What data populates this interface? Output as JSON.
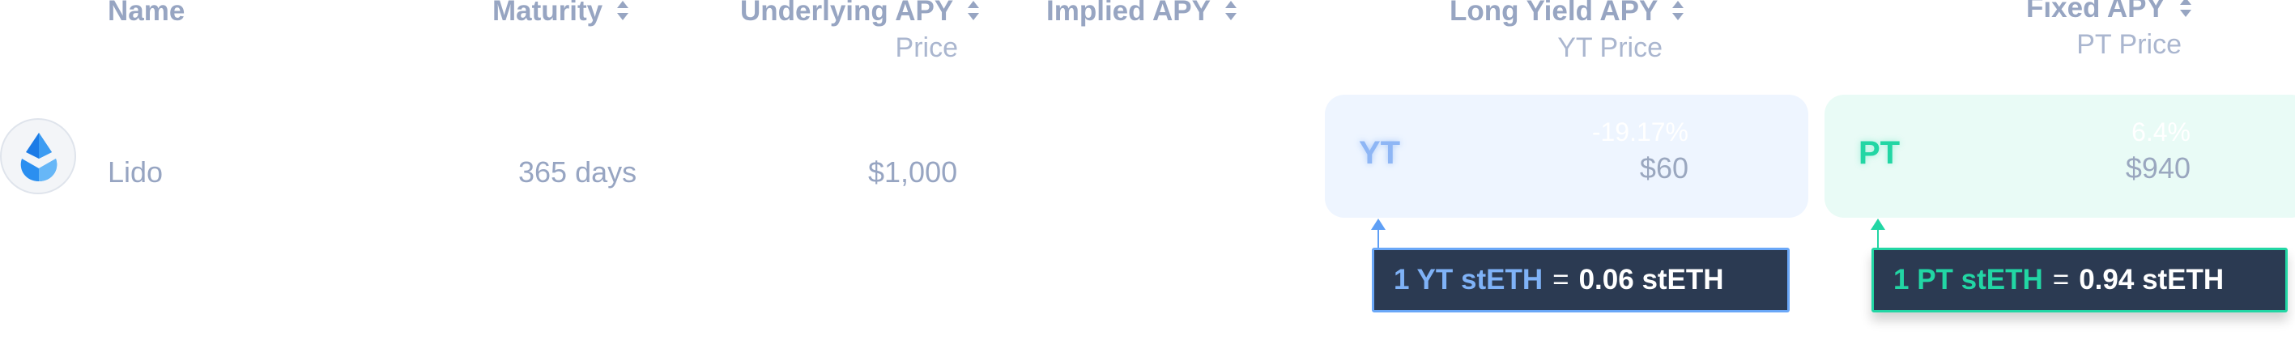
{
  "headers": {
    "name": "Name",
    "maturity": "Maturity",
    "underlying_apy": "Underlying APY",
    "underlying_sub": "Price",
    "implied_apy": "Implied APY",
    "long_yield_apy": "Long Yield APY",
    "long_yield_sub": "YT Price",
    "fixed_apy": "Fixed APY",
    "fixed_sub": "PT Price"
  },
  "row": {
    "name": "Lido",
    "maturity": "365 days",
    "underlying_price": "$1,000",
    "yt": {
      "tag": "YT",
      "apy": "-19.17%",
      "price": "$60"
    },
    "pt": {
      "tag": "PT",
      "apy": "6.4%",
      "price": "$940"
    }
  },
  "tooltips": {
    "yt": {
      "lhs": "1 YT stETH",
      "eq": "=",
      "rhs": "0.06 stETH"
    },
    "pt": {
      "lhs": "1 PT stETH",
      "eq": "=",
      "rhs": "0.94 stETH"
    }
  },
  "colors": {
    "yt_accent": "#5f9ff5",
    "pt_accent": "#22d6a4",
    "tooltip_bg": "#2b3a52",
    "header_text": "#97a5c2"
  },
  "icons": {
    "logo": "lido-drop-icon",
    "sort": "sort-arrows-icon"
  }
}
